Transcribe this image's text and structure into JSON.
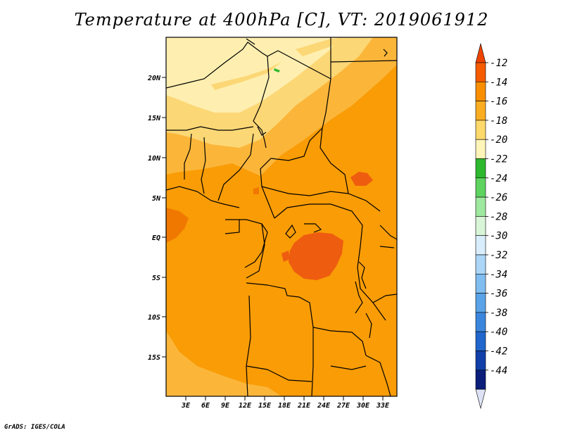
{
  "title": "Temperature at 400hPa [C], VT: 2019061912",
  "credit": "GrADS: IGES/COLA",
  "lat_labels": [
    "20N",
    "15N",
    "10N",
    "5N",
    "EQ",
    "5S",
    "10S",
    "15S"
  ],
  "lon_labels": [
    "3E",
    "6E",
    "9E",
    "12E",
    "15E",
    "18E",
    "21E",
    "24E",
    "27E",
    "30E",
    "33E"
  ],
  "colorbar": {
    "labels": [
      "-12",
      "-14",
      "-16",
      "-18",
      "-20",
      "-22",
      "-24",
      "-26",
      "-28",
      "-30",
      "-32",
      "-34",
      "-36",
      "-38",
      "-40",
      "-42",
      "-44"
    ],
    "colors": [
      "#ee4400",
      "#f55b00",
      "#f98f00",
      "#fbad22",
      "#fdd86a",
      "#fff5b8",
      "#2eb82e",
      "#5fd35f",
      "#9fe89f",
      "#d8f5d8",
      "#d9eefc",
      "#abd6f7",
      "#80bdf0",
      "#5aa3e8",
      "#3b86dd",
      "#2066cc",
      "#1040a8",
      "#0a1e7a",
      "#dde2f5"
    ]
  },
  "colors": {
    "base_orange": "#f99c06",
    "dark_orange": "#f07800",
    "red_orange": "#ee5c10",
    "light_orange": "#fbb63a",
    "pale_yellow": "#fcd776",
    "very_pale_yellow": "#feefb0",
    "green_speck": "#2eb82e"
  }
}
